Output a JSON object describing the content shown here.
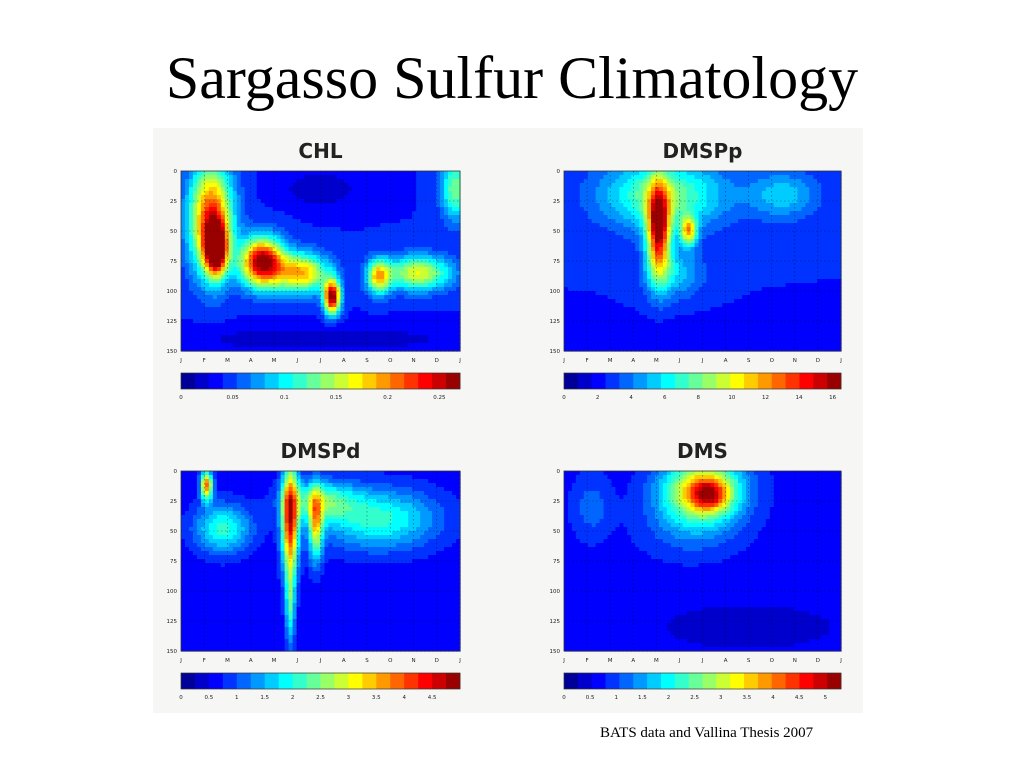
{
  "slide": {
    "title": "Sargasso Sulfur Climatology",
    "caption": "BATS data and Vallina Thesis 2007"
  },
  "chart_data": [
    {
      "type": "heatmap",
      "title": "CHL",
      "x_tick_labels": [
        "J",
        "F",
        "M",
        "A",
        "M",
        "J",
        "J",
        "A",
        "S",
        "O",
        "N",
        "D",
        "J"
      ],
      "y_tick_labels": [
        "0",
        "25",
        "50",
        "75",
        "100",
        "125",
        "150"
      ],
      "ylim": [
        0,
        150
      ],
      "y_inverted": true,
      "colorbar_range": [
        0,
        0.27
      ],
      "colorbar_tick_values": [
        0,
        0.05,
        0.1,
        0.15,
        0.2,
        0.25
      ],
      "colorbar_tick_labels": [
        "0",
        "0.05",
        "0.1",
        "0.15",
        "0.2",
        "0.25"
      ],
      "grid": true,
      "base_fraction": 0.15,
      "features": [
        {
          "month": 1.3,
          "depth": 40,
          "month_width": 0.9,
          "depth_width": 45,
          "fraction": 0.7
        },
        {
          "month": 1.5,
          "depth": 65,
          "month_width": 0.45,
          "depth_width": 20,
          "fraction": 0.85
        },
        {
          "month": 3.5,
          "depth": 76,
          "month_width": 0.9,
          "depth_width": 20,
          "fraction": 0.85
        },
        {
          "month": 5.2,
          "depth": 85,
          "month_width": 1.1,
          "depth_width": 16,
          "fraction": 0.55
        },
        {
          "month": 6.5,
          "depth": 105,
          "month_width": 0.35,
          "depth_width": 14,
          "fraction": 0.85
        },
        {
          "month": 8.5,
          "depth": 88,
          "month_width": 0.5,
          "depth_width": 14,
          "fraction": 0.5
        },
        {
          "month": 10.2,
          "depth": 85,
          "month_width": 1.4,
          "depth_width": 14,
          "fraction": 0.45
        },
        {
          "month": 6.0,
          "depth": 15,
          "month_width": 1.6,
          "depth_width": 14,
          "fraction": -0.1
        },
        {
          "month": 11.8,
          "depth": 15,
          "month_width": 0.6,
          "depth_width": 25,
          "fraction": 0.35
        },
        {
          "month": 6.0,
          "depth": 140,
          "month_width": 7.0,
          "depth_width": 12,
          "fraction": -0.08
        }
      ]
    },
    {
      "type": "heatmap",
      "title": "DMSPp",
      "x_tick_labels": [
        "J",
        "F",
        "M",
        "A",
        "M",
        "J",
        "J",
        "A",
        "S",
        "O",
        "N",
        "D",
        "J"
      ],
      "y_tick_labels": [
        "0",
        "25",
        "50",
        "75",
        "100",
        "125",
        "150"
      ],
      "ylim": [
        0,
        150
      ],
      "y_inverted": true,
      "colorbar_range": [
        0,
        16.5
      ],
      "colorbar_tick_values": [
        0,
        2,
        4,
        6,
        8,
        10,
        12,
        14,
        16
      ],
      "colorbar_tick_labels": [
        "0",
        "2",
        "4",
        "6",
        "8",
        "10",
        "12",
        "14",
        "16"
      ],
      "grid": true,
      "base_fraction": 0.15,
      "features": [
        {
          "month": 4.3,
          "depth": 20,
          "month_width": 2.6,
          "depth_width": 28,
          "fraction": 0.35
        },
        {
          "month": 4.1,
          "depth": 50,
          "month_width": 0.5,
          "depth_width": 38,
          "fraction": 0.75
        },
        {
          "month": 4.1,
          "depth": 42,
          "month_width": 0.22,
          "depth_width": 12,
          "fraction": 0.2
        },
        {
          "month": 5.4,
          "depth": 50,
          "month_width": 0.35,
          "depth_width": 12,
          "fraction": 0.5
        },
        {
          "month": 4.8,
          "depth": 85,
          "month_width": 1.2,
          "depth_width": 20,
          "fraction": 0.18
        },
        {
          "month": 9.5,
          "depth": 20,
          "month_width": 1.5,
          "depth_width": 20,
          "fraction": 0.18
        },
        {
          "month": 6.0,
          "depth": 140,
          "month_width": 7.0,
          "depth_width": 15,
          "fraction": -0.05
        }
      ]
    },
    {
      "type": "heatmap",
      "title": "DMSPd",
      "x_tick_labels": [
        "J",
        "F",
        "M",
        "A",
        "M",
        "J",
        "J",
        "A",
        "S",
        "O",
        "N",
        "D",
        "J"
      ],
      "y_tick_labels": [
        "0",
        "25",
        "50",
        "75",
        "100",
        "125",
        "150"
      ],
      "ylim": [
        0,
        150
      ],
      "y_inverted": true,
      "colorbar_range": [
        0,
        5
      ],
      "colorbar_tick_values": [
        0,
        0.5,
        1,
        1.5,
        2,
        2.5,
        3,
        3.5,
        4,
        4.5
      ],
      "colorbar_tick_labels": [
        "0",
        "0.5",
        "1",
        "1.5",
        "2",
        "2.5",
        "3",
        "3.5",
        "4",
        "4.5"
      ],
      "grid": true,
      "base_fraction": 0.12,
      "features": [
        {
          "month": 4.7,
          "depth": 40,
          "month_width": 0.35,
          "depth_width": 45,
          "fraction": 0.75
        },
        {
          "month": 4.7,
          "depth": 110,
          "month_width": 0.2,
          "depth_width": 35,
          "fraction": 0.3
        },
        {
          "month": 1.1,
          "depth": 12,
          "month_width": 0.25,
          "depth_width": 12,
          "fraction": 0.65
        },
        {
          "month": 5.8,
          "depth": 45,
          "month_width": 0.3,
          "depth_width": 30,
          "fraction": 0.45
        },
        {
          "month": 6.0,
          "depth": 25,
          "month_width": 1.5,
          "depth_width": 16,
          "fraction": 0.3
        },
        {
          "month": 8.5,
          "depth": 40,
          "month_width": 2.5,
          "depth_width": 25,
          "fraction": 0.3
        },
        {
          "month": 1.8,
          "depth": 48,
          "month_width": 1.2,
          "depth_width": 20,
          "fraction": 0.3
        }
      ]
    },
    {
      "type": "heatmap",
      "title": "DMS",
      "x_tick_labels": [
        "J",
        "F",
        "M",
        "A",
        "M",
        "J",
        "J",
        "A",
        "S",
        "O",
        "N",
        "D",
        "J"
      ],
      "y_tick_labels": [
        "0",
        "25",
        "50",
        "75",
        "100",
        "125",
        "150"
      ],
      "ylim": [
        0,
        150
      ],
      "y_inverted": true,
      "colorbar_range": [
        0,
        5.3
      ],
      "colorbar_tick_values": [
        0,
        0.5,
        1,
        1.5,
        2,
        2.5,
        3,
        3.5,
        4,
        4.5,
        5
      ],
      "colorbar_tick_labels": [
        "0",
        "0.5",
        "1",
        "1.5",
        "2",
        "2.5",
        "3",
        "3.5",
        "4",
        "4.5",
        "5"
      ],
      "grid": true,
      "base_fraction": 0.13,
      "features": [
        {
          "month": 6.0,
          "depth": 15,
          "month_width": 1.7,
          "depth_width": 25,
          "fraction": 0.55
        },
        {
          "month": 6.3,
          "depth": 20,
          "month_width": 0.8,
          "depth_width": 13,
          "fraction": 0.35
        },
        {
          "month": 5.5,
          "depth": 45,
          "month_width": 2.0,
          "depth_width": 25,
          "fraction": 0.12
        },
        {
          "month": 1.2,
          "depth": 30,
          "month_width": 0.8,
          "depth_width": 25,
          "fraction": 0.1
        },
        {
          "month": 8.0,
          "depth": 130,
          "month_width": 5.0,
          "depth_width": 25,
          "fraction": -0.05
        }
      ]
    }
  ]
}
